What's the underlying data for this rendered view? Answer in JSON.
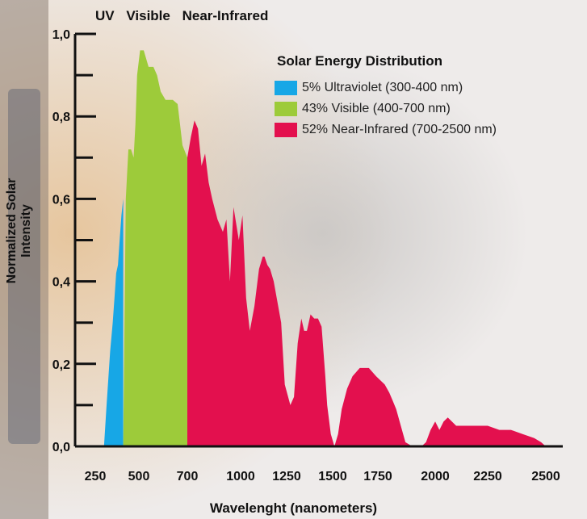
{
  "colors": {
    "uv": "#17a7e6",
    "visible": "#9dcb3a",
    "nir": "#e3104e",
    "axis": "#111111"
  },
  "chart_data": {
    "type": "area",
    "band_labels": [
      "UV",
      "Visible",
      "Near-Infrared"
    ],
    "xlabel": "Wavelenght (nanometers)",
    "ylabel": "Normalized Solar Intensity",
    "xlim": [
      250,
      2500
    ],
    "ylim": [
      0,
      1.0
    ],
    "x_ticks": [
      "250",
      "500",
      "700",
      "1000",
      "1250",
      "1500",
      "1750",
      "2000",
      "2250",
      "2500"
    ],
    "y_ticks": [
      "0,0",
      "0,2",
      "0,4",
      "0,6",
      "0,8",
      "1,0"
    ],
    "legend": {
      "title": "Solar Energy Distribution",
      "placement": "top-right",
      "entries": [
        {
          "label": "5% Ultraviolet (300-400 nm)",
          "color_key": "uv"
        },
        {
          "label": "43% Visible (400-700 nm)",
          "color_key": "visible"
        },
        {
          "label": "52% Near-Infrared (700-2500 nm)",
          "color_key": "nir"
        }
      ]
    },
    "series": [
      {
        "color_key": "uv",
        "x": [
          300,
          315,
          335,
          350,
          360,
          370,
          380,
          390,
          400,
          410,
          410
        ],
        "y": [
          0.0,
          0.1,
          0.23,
          0.3,
          0.36,
          0.42,
          0.44,
          0.5,
          0.56,
          0.6,
          0.0
        ]
      },
      {
        "color_key": "visible",
        "x": [
          410,
          425,
          440,
          455,
          470,
          480,
          490,
          505,
          520,
          540,
          560,
          575,
          590,
          610,
          625,
          640,
          660,
          680,
          700,
          700
        ],
        "y": [
          0.0,
          0.6,
          0.72,
          0.72,
          0.7,
          0.78,
          0.9,
          0.96,
          0.96,
          0.92,
          0.92,
          0.9,
          0.86,
          0.84,
          0.84,
          0.84,
          0.83,
          0.73,
          0.7,
          0.0
        ]
      },
      {
        "color_key": "nir",
        "x": [
          700,
          720,
          740,
          760,
          780,
          800,
          820,
          840,
          870,
          900,
          920,
          940,
          960,
          990,
          1010,
          1030,
          1050,
          1075,
          1100,
          1120,
          1130,
          1145,
          1160,
          1180,
          1200,
          1220,
          1240,
          1270,
          1290,
          1310,
          1330,
          1345,
          1360,
          1380,
          1400,
          1420,
          1440,
          1460,
          1470,
          1490,
          1510,
          1530,
          1550,
          1580,
          1610,
          1650,
          1700,
          1740,
          1780,
          1800,
          1815,
          1830,
          1850,
          1870,
          1900,
          1910,
          1920,
          1940,
          1960,
          1980,
          2000,
          2020,
          2040,
          2060,
          2100,
          2150,
          2200,
          2250,
          2300,
          2350,
          2400,
          2450,
          2480,
          2500
        ],
        "y": [
          0.7,
          0.75,
          0.79,
          0.77,
          0.68,
          0.71,
          0.64,
          0.6,
          0.55,
          0.52,
          0.55,
          0.4,
          0.58,
          0.5,
          0.56,
          0.36,
          0.28,
          0.34,
          0.43,
          0.46,
          0.46,
          0.44,
          0.43,
          0.4,
          0.35,
          0.3,
          0.15,
          0.1,
          0.12,
          0.25,
          0.31,
          0.28,
          0.28,
          0.32,
          0.31,
          0.31,
          0.29,
          0.17,
          0.1,
          0.03,
          0.0,
          0.03,
          0.09,
          0.14,
          0.17,
          0.19,
          0.19,
          0.17,
          0.15,
          0.13,
          0.11,
          0.09,
          0.05,
          0.01,
          0.0,
          0.0,
          0.0,
          0.0,
          0.01,
          0.04,
          0.06,
          0.04,
          0.06,
          0.07,
          0.05,
          0.05,
          0.05,
          0.05,
          0.04,
          0.04,
          0.03,
          0.02,
          0.01,
          0.0
        ]
      }
    ]
  }
}
